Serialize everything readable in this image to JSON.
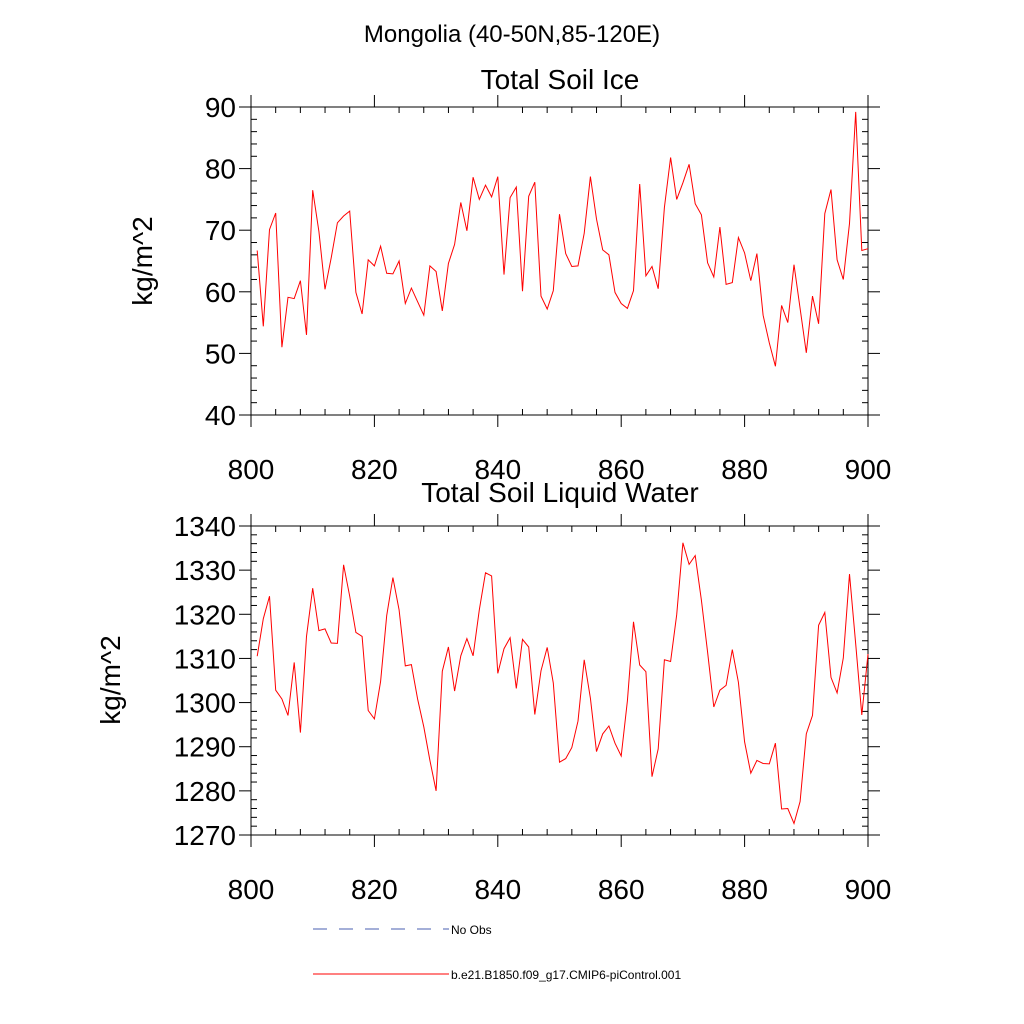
{
  "figure": {
    "region_title": "Mongolia (40-50N,85-120E)"
  },
  "colors": {
    "model_line": "#ff0000",
    "obs_line": "#4a5fb0",
    "axis": "#000000"
  },
  "legend": {
    "obs_label": "No Obs",
    "model_label": "b.e21.B1850.f09_g17.CMIP6-piControl.001"
  },
  "chart_data": [
    {
      "type": "line",
      "title": "Total Soil Ice",
      "xlabel": "",
      "ylabel": "kg/m^2",
      "xlim": [
        800,
        900
      ],
      "ylim": [
        40,
        90
      ],
      "xticks": [
        800,
        820,
        840,
        860,
        880,
        900
      ],
      "yticks": [
        40,
        50,
        60,
        70,
        80,
        90
      ],
      "x_minor_step": 4,
      "y_minor_step": 2,
      "x_start": 801,
      "x_step": 1,
      "series": [
        {
          "name": "b.e21.B1850.f09_g17.CMIP6-piControl.001",
          "values": [
            66.7,
            54.4,
            70.1,
            72.8,
            51.0,
            59.1,
            58.9,
            61.8,
            53.0,
            76.5,
            69.8,
            60.4,
            65.5,
            71.2,
            72.3,
            73.1,
            59.9,
            56.4,
            65.2,
            64.2,
            67.4,
            63.0,
            62.9,
            65.0,
            58.1,
            60.6,
            58.4,
            56.2,
            64.2,
            63.3,
            56.9,
            64.6,
            67.7,
            74.5,
            69.9,
            78.6,
            75.0,
            77.3,
            75.4,
            78.7,
            62.8,
            75.3,
            77.0,
            60.1,
            75.5,
            77.8,
            59.3,
            57.2,
            60.2,
            72.6,
            66.2,
            64.1,
            64.2,
            69.5,
            78.7,
            71.8,
            66.8,
            66.0,
            59.9,
            58.1,
            57.3,
            60.2,
            77.5,
            62.6,
            64.1,
            60.5,
            73.7,
            81.8,
            75.0,
            77.7,
            80.7,
            74.3,
            72.5,
            64.7,
            62.4,
            70.5,
            61.2,
            61.5,
            68.8,
            66.3,
            61.8,
            66.2,
            56.2,
            51.7,
            47.9,
            57.8,
            55.0,
            64.4,
            57.3,
            50.1,
            59.3,
            54.8,
            72.7,
            76.6,
            65.2,
            62.0,
            71.1,
            89.2,
            66.7,
            67.0
          ]
        }
      ]
    },
    {
      "type": "line",
      "title": "Total Soil Liquid Water",
      "xlabel": "",
      "ylabel": "kg/m^2",
      "xlim": [
        800,
        900
      ],
      "ylim": [
        1270,
        1340
      ],
      "xticks": [
        800,
        820,
        840,
        860,
        880,
        900
      ],
      "yticks": [
        1270,
        1280,
        1290,
        1300,
        1310,
        1320,
        1330,
        1340
      ],
      "x_minor_step": 4,
      "y_minor_step": 2,
      "x_start": 801,
      "x_step": 1,
      "series": [
        {
          "name": "b.e21.B1850.f09_g17.CMIP6-piControl.001",
          "values": [
            1310.5,
            1319.0,
            1324.1,
            1302.8,
            1300.8,
            1297.1,
            1309.1,
            1293.2,
            1315.0,
            1325.9,
            1316.3,
            1316.7,
            1313.5,
            1313.4,
            1331.2,
            1324.1,
            1315.9,
            1315.0,
            1298.2,
            1296.3,
            1304.8,
            1319.7,
            1328.3,
            1321.0,
            1308.3,
            1308.6,
            1300.8,
            1294.5,
            1286.9,
            1280.0,
            1307.1,
            1312.6,
            1302.6,
            1310.6,
            1314.5,
            1310.6,
            1321.0,
            1329.4,
            1328.7,
            1306.6,
            1312.2,
            1314.7,
            1303.2,
            1314.3,
            1312.6,
            1297.3,
            1307.2,
            1312.5,
            1304.4,
            1286.5,
            1287.3,
            1289.8,
            1295.8,
            1309.7,
            1301.0,
            1288.9,
            1292.9,
            1294.7,
            1290.8,
            1287.9,
            1300.4,
            1318.3,
            1308.5,
            1307.0,
            1283.2,
            1289.5,
            1309.7,
            1309.3,
            1319.9,
            1336.2,
            1331.3,
            1333.3,
            1323.2,
            1311.4,
            1299.0,
            1302.8,
            1303.9,
            1312.0,
            1304.6,
            1291.1,
            1284.0,
            1286.9,
            1286.2,
            1286.1,
            1290.8,
            1275.9,
            1276.0,
            1272.6,
            1277.6,
            1292.9,
            1297.1,
            1317.5,
            1320.4,
            1305.7,
            1302.2,
            1310.1,
            1329.1,
            1313.3,
            1297.2,
            1311.0
          ]
        }
      ]
    }
  ]
}
